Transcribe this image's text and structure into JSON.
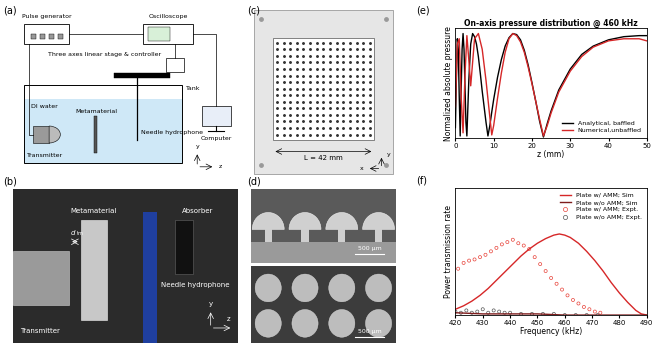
{
  "a": {
    "panel_label": "(a)",
    "labels": {
      "pulse_generator": "Pulse generator",
      "oscilloscope": "Oscilloscope",
      "stage": "Three axes linear stage & controller",
      "water": "DI water",
      "transmitter": "Transmitter",
      "metamaterial": "Metamaterial",
      "hydrophone": "Needle hydrophone",
      "tank": "Tank",
      "computer": "Computer",
      "axis_y": "y",
      "axis_z": "z"
    }
  },
  "b": {
    "panel_label": "(b)",
    "labels": {
      "metamaterial": "Metamaterial",
      "absorber": "Absorber",
      "transmitter": "Transmitter",
      "hydrophone": "Needle hydrophone",
      "distance": "d",
      "distance_sub": "tm",
      "axis_y": "y",
      "axis_z": "z"
    }
  },
  "c": {
    "panel_label": "(c)",
    "labels": {
      "size": "L = 42 mm",
      "axis_x": "x",
      "axis_y": "y"
    }
  },
  "d": {
    "panel_label": "(d)",
    "scale_bars": [
      "500 µm",
      "500 µm"
    ]
  },
  "chart_data": [
    {
      "panel_label": "(e)",
      "type": "line",
      "title": "On-axis pressure distribution @ 460 kHz",
      "x_label": "z (mm)",
      "y_label": "Normalized absolute pressure",
      "xlim": [
        0,
        50
      ],
      "xticks": [
        0,
        10,
        20,
        30,
        40,
        50
      ],
      "ylim": [
        0,
        1.05
      ],
      "tick_labels": "x",
      "legend": "lower right",
      "series": [
        {
          "name": "Analytical, baffled",
          "color": "#000000",
          "x": [
            0,
            0.25,
            0.5,
            0.75,
            1,
            1.25,
            1.5,
            1.75,
            2,
            2.25,
            2.5,
            2.75,
            3,
            3.5,
            4,
            4.5,
            5,
            5.5,
            6,
            6.5,
            7,
            7.5,
            8,
            8.5,
            9,
            9.5,
            10,
            11,
            12,
            13,
            14,
            15,
            16,
            17,
            18,
            19,
            20,
            21,
            22,
            23,
            24,
            25,
            27,
            30,
            33,
            36,
            40,
            44,
            48,
            50
          ],
          "values": [
            0.1,
            0.55,
            0.95,
            0.85,
            0.4,
            0.02,
            0.45,
            0.85,
            1.0,
            0.85,
            0.5,
            0.15,
            0.02,
            0.55,
            0.9,
            1.0,
            0.97,
            0.9,
            0.78,
            0.62,
            0.45,
            0.3,
            0.15,
            0.02,
            0.12,
            0.25,
            0.37,
            0.58,
            0.75,
            0.88,
            0.96,
            1.0,
            0.99,
            0.94,
            0.84,
            0.7,
            0.53,
            0.35,
            0.16,
            0.01,
            0.14,
            0.26,
            0.46,
            0.66,
            0.8,
            0.88,
            0.94,
            0.97,
            0.98,
            0.98
          ]
        },
        {
          "name": "Numerical,unbaffled",
          "color": "#d62728",
          "x": [
            0,
            0.5,
            1,
            1.5,
            2,
            2.5,
            3,
            3.5,
            4,
            5,
            6,
            7,
            8,
            9,
            9.5,
            10,
            11,
            12,
            13,
            14,
            15,
            16,
            17,
            18,
            19,
            20,
            21,
            22,
            23,
            24,
            25,
            27,
            30,
            33,
            36,
            40,
            44,
            48,
            50
          ],
          "values": [
            0.3,
            0.9,
            0.95,
            0.4,
            0.05,
            0.6,
            0.98,
            0.75,
            0.5,
            0.95,
            1.0,
            0.85,
            0.55,
            0.2,
            0.03,
            0.12,
            0.38,
            0.62,
            0.82,
            0.95,
            1.0,
            0.98,
            0.92,
            0.82,
            0.68,
            0.52,
            0.35,
            0.18,
            0.02,
            0.12,
            0.24,
            0.44,
            0.64,
            0.78,
            0.87,
            0.93,
            0.95,
            0.95,
            0.93
          ]
        }
      ]
    },
    {
      "panel_label": "(f)",
      "type": "line",
      "x_label": "Frequency (kHz)",
      "y_label": "Power transmission rate",
      "xlim": [
        420,
        490
      ],
      "xticks": [
        420,
        430,
        440,
        450,
        460,
        470,
        480,
        490
      ],
      "ylim": [
        0,
        1.1
      ],
      "tick_labels": "x",
      "legend": "upper right",
      "series": [
        {
          "name": "Plate w/ AMM; Sim",
          "type": "line",
          "color": "#d62728",
          "x": [
            420,
            423,
            426,
            429,
            432,
            435,
            438,
            441,
            444,
            447,
            450,
            453,
            456,
            458,
            460,
            462,
            465,
            468,
            471,
            474,
            477,
            480,
            483,
            486,
            488,
            490
          ],
          "values": [
            0.05,
            0.08,
            0.12,
            0.17,
            0.23,
            0.3,
            0.37,
            0.44,
            0.51,
            0.57,
            0.62,
            0.66,
            0.69,
            0.7,
            0.69,
            0.67,
            0.62,
            0.55,
            0.47,
            0.38,
            0.28,
            0.19,
            0.11,
            0.04,
            0.01,
            0.0
          ]
        },
        {
          "name": "Plate w/o AMM; Sim",
          "type": "line",
          "color": "#7f1d1d",
          "x": [
            420,
            430,
            440,
            450,
            460,
            470,
            480,
            490
          ],
          "values": [
            0.02,
            0.01,
            0.01,
            0.01,
            0.0,
            0.0,
            0.0,
            0.0
          ]
        },
        {
          "name": "Plate w/ AMM; Expt.",
          "type": "scatter",
          "marker": "circle",
          "color": "#e8453c",
          "x": [
            421,
            423,
            425,
            427,
            429,
            431,
            433,
            435,
            437,
            439,
            441,
            443,
            445,
            447,
            449,
            451,
            453,
            455,
            457,
            459,
            461,
            463,
            465,
            467,
            469,
            471,
            473
          ],
          "values": [
            0.4,
            0.45,
            0.47,
            0.48,
            0.5,
            0.52,
            0.55,
            0.58,
            0.61,
            0.63,
            0.65,
            0.62,
            0.6,
            0.57,
            0.5,
            0.44,
            0.38,
            0.32,
            0.27,
            0.22,
            0.17,
            0.13,
            0.1,
            0.07,
            0.05,
            0.03,
            0.02
          ]
        },
        {
          "name": "Plate w/o AMM; Expt.",
          "type": "scatter",
          "marker": "circle",
          "color": "#555555",
          "x": [
            420,
            422,
            424,
            426,
            428,
            430,
            432,
            434,
            436,
            438,
            440,
            444,
            448,
            452,
            456,
            460,
            464,
            468,
            472
          ],
          "values": [
            0.03,
            0.02,
            0.04,
            0.02,
            0.03,
            0.05,
            0.02,
            0.04,
            0.03,
            0.02,
            0.02,
            0.01,
            0.01,
            0.01,
            0.01,
            0.0,
            0.0,
            0.0,
            0.0
          ]
        }
      ]
    }
  ]
}
